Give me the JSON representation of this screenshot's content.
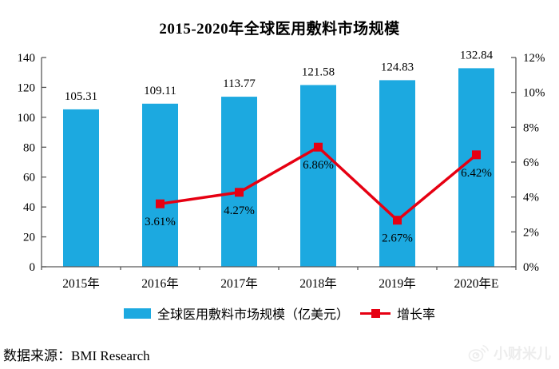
{
  "title": "2015-2020年全球医用敷料市场规模",
  "chart_data": {
    "type": "bar+line",
    "categories": [
      "2015年",
      "2016年",
      "2017年",
      "2018年",
      "2019年",
      "2020年E"
    ],
    "series": [
      {
        "name": "全球医用敷料市场规模（亿美元）",
        "type": "bar",
        "axis": "left",
        "values": [
          105.31,
          109.11,
          113.77,
          121.58,
          124.83,
          132.84
        ],
        "labels": [
          "105.31",
          "109.11",
          "113.77",
          "121.58",
          "124.83",
          "132.84"
        ]
      },
      {
        "name": "增长率",
        "type": "line",
        "axis": "right",
        "values": [
          null,
          3.61,
          4.27,
          6.86,
          2.67,
          6.42
        ],
        "labels": [
          "",
          "3.61%",
          "4.27%",
          "6.86%",
          "2.67%",
          "6.42%"
        ]
      }
    ],
    "left_axis": {
      "min": 0,
      "max": 140,
      "ticks": [
        0,
        20,
        40,
        60,
        80,
        100,
        120,
        140
      ]
    },
    "right_axis": {
      "min": 0,
      "max": 12,
      "tick_values": [
        0,
        2,
        4,
        6,
        8,
        10,
        12
      ],
      "tick_labels": [
        "0%",
        "2%",
        "4%",
        "6%",
        "8%",
        "10%",
        "12%"
      ]
    },
    "grid": false,
    "legend_position": "bottom"
  },
  "legend": {
    "bar_label": "全球医用敷料市场规模（亿美元）",
    "line_label": "增长率"
  },
  "source": "数据来源：BMI Research",
  "watermark": "小财米儿",
  "colors": {
    "bar": "#1CA9E0",
    "line": "#E60012",
    "axis": "#595959",
    "text": "#000000",
    "watermark": "#EDEDED"
  }
}
